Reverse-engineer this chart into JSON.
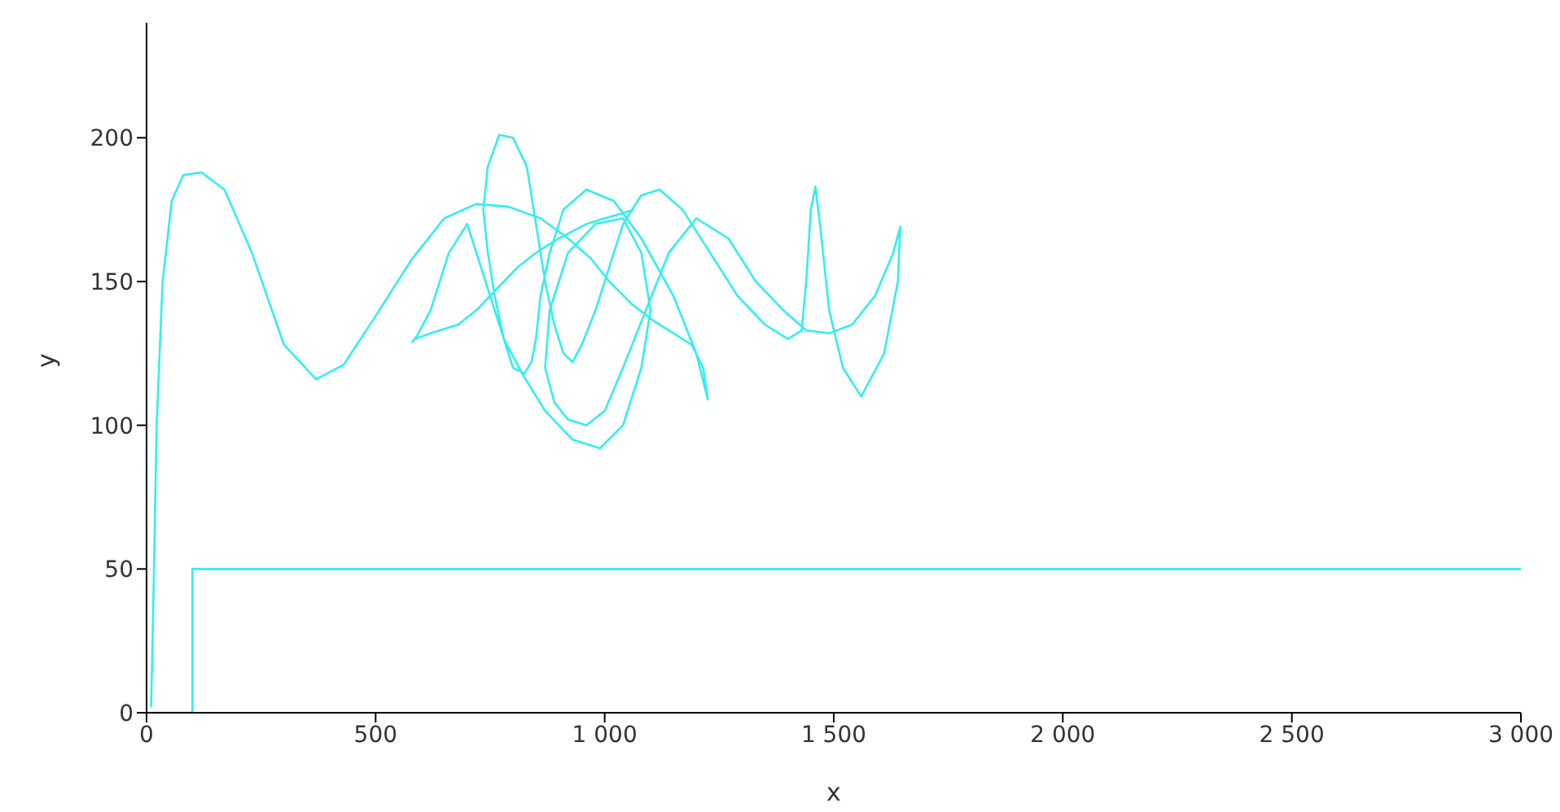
{
  "chart_data": {
    "type": "line",
    "xlabel": "x",
    "ylabel": "y",
    "xlim": [
      0,
      3000
    ],
    "ylim": [
      0,
      240
    ],
    "xticks": [
      0,
      500,
      {
        "value": 1000,
        "label": "1 000"
      },
      {
        "value": 1500,
        "label": "1 500"
      },
      {
        "value": 2000,
        "label": "2 000"
      },
      {
        "value": 2500,
        "label": "2 500"
      },
      {
        "value": 3000,
        "label": "3 000"
      }
    ],
    "yticks": [
      0,
      50,
      100,
      150,
      200
    ],
    "grid": false,
    "marker": "none",
    "line_style": "solid",
    "series": [
      {
        "color": "#33eeee",
        "x": [
          0,
          100,
          100,
          3000
        ],
        "values": [
          0,
          0,
          50,
          50
        ]
      },
      {
        "color": "#33eeee",
        "x": [
          10,
          15,
          22,
          35,
          55,
          80,
          120,
          170,
          230,
          300,
          370,
          430,
          500,
          580,
          650,
          720,
          790,
          860,
          920,
          970,
          1010,
          1060,
          1110,
          1160,
          1190,
          1215,
          1225,
          1200,
          1150,
          1080,
          1020,
          960,
          910,
          880,
          860,
          850,
          840,
          825,
          800,
          780,
          760,
          745,
          735,
          745,
          770,
          800,
          830,
          850,
          870,
          890,
          910,
          930,
          950,
          980,
          1010,
          1040,
          1080,
          1120,
          1170,
          1230,
          1290,
          1350,
          1400,
          1430,
          1440,
          1450,
          1460,
          1470,
          1490,
          1520,
          1560,
          1610,
          1640,
          1645,
          1630,
          1590,
          1540,
          1490,
          1440,
          1390,
          1330,
          1270,
          1200,
          1140,
          1090,
          1040,
          1000,
          960,
          920,
          890,
          870,
          880,
          920,
          980,
          1040,
          1080,
          1100,
          1080,
          1040,
          990,
          930,
          870,
          820,
          780,
          740,
          700,
          660,
          620,
          590,
          580,
          585,
          620,
          680,
          720,
          750,
          780,
          810,
          850,
          900,
          960,
          1064
        ],
        "values": [
          2,
          40,
          100,
          150,
          178,
          187,
          188,
          182,
          160,
          128,
          116,
          121,
          138,
          158,
          172,
          177,
          176,
          172,
          165,
          158,
          150,
          142,
          136,
          131,
          128,
          120,
          109,
          125,
          145,
          165,
          178,
          182,
          175,
          160,
          145,
          130,
          122,
          118,
          120,
          130,
          145,
          160,
          175,
          190,
          201,
          200,
          190,
          170,
          150,
          135,
          125,
          122,
          128,
          140,
          155,
          170,
          180,
          182,
          175,
          160,
          145,
          135,
          130,
          133,
          150,
          175,
          183,
          170,
          140,
          120,
          110,
          125,
          150,
          169,
          160,
          145,
          135,
          132,
          133,
          140,
          150,
          165,
          172,
          160,
          140,
          120,
          105,
          100,
          102,
          108,
          120,
          140,
          160,
          170,
          172,
          160,
          140,
          120,
          100,
          92,
          95,
          105,
          118,
          130,
          150,
          170,
          160,
          140,
          131,
          129,
          130,
          132,
          135,
          140,
          145,
          150,
          155,
          160,
          165,
          170,
          175
        ]
      }
    ]
  }
}
